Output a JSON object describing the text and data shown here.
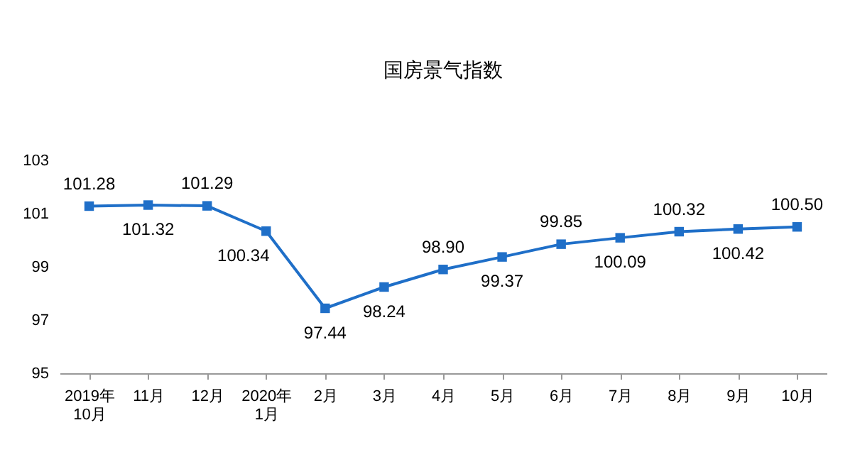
{
  "chart_data": {
    "type": "line",
    "title": "国房景气指数",
    "categories": [
      "2019年\n10月",
      "11月",
      "12月",
      "2020年\n1月",
      "2月",
      "3月",
      "4月",
      "5月",
      "6月",
      "7月",
      "8月",
      "9月",
      "10月"
    ],
    "series": [
      {
        "color": "#1f6fc8",
        "values": [
          101.28,
          101.32,
          101.29,
          100.34,
          97.44,
          98.24,
          98.9,
          99.37,
          99.85,
          100.09,
          100.32,
          100.42,
          100.5
        ]
      }
    ],
    "value_labels": [
      "101.28",
      "101.32",
      "101.29",
      "100.34",
      "97.44",
      "98.24",
      "98.90",
      "99.37",
      "99.85",
      "100.09",
      "100.32",
      "100.42",
      "100.50"
    ],
    "ylim": [
      95,
      103
    ],
    "yticks": [
      95,
      97,
      99,
      101,
      103
    ],
    "marker": "square",
    "line_style": "solid",
    "grid": false
  }
}
